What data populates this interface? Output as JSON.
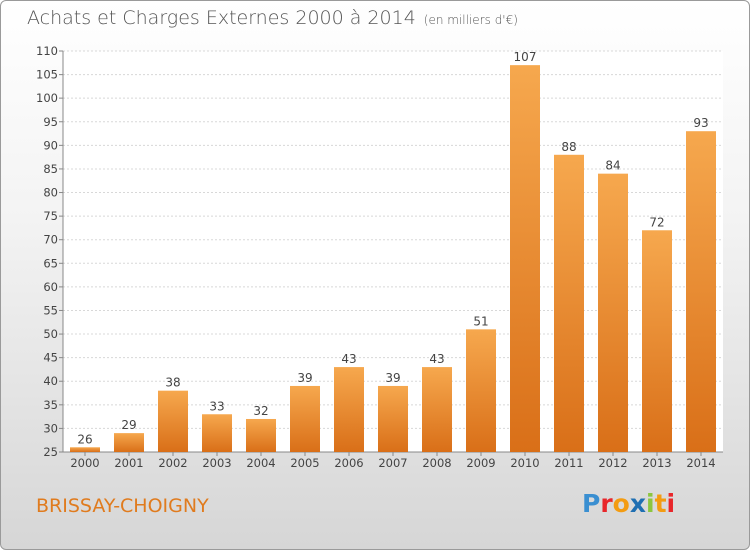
{
  "header": {
    "title": "Achats et Charges Externes 2000 à 2014",
    "subtitle": "(en milliers d'€)"
  },
  "commune": "BRISSAY-CHOIGNY",
  "logo": {
    "text": "Proxiti",
    "letters": [
      {
        "ch": "P",
        "color": "#3a8fd1"
      },
      {
        "ch": "r",
        "color": "#e8262a"
      },
      {
        "ch": "o",
        "color": "#f39c12"
      },
      {
        "ch": "x",
        "color": "#1f6fb2"
      },
      {
        "ch": "i",
        "color": "#8cc63f"
      },
      {
        "ch": "t",
        "color": "#f39c12"
      },
      {
        "ch": "i",
        "color": "#e8262a"
      }
    ]
  },
  "chart_data": {
    "type": "bar",
    "title": "Achats et Charges Externes 2000 à 2014",
    "subtitle": "(en milliers d'€)",
    "categories": [
      "2000",
      "2001",
      "2002",
      "2003",
      "2004",
      "2005",
      "2006",
      "2007",
      "2008",
      "2009",
      "2010",
      "2011",
      "2012",
      "2013",
      "2014"
    ],
    "values": [
      26,
      29,
      38,
      33,
      32,
      39,
      43,
      39,
      43,
      51,
      107,
      88,
      84,
      72,
      93
    ],
    "ylim": [
      25,
      110
    ],
    "yticks": [
      25,
      30,
      35,
      40,
      45,
      50,
      55,
      60,
      65,
      70,
      75,
      80,
      85,
      90,
      95,
      100,
      105,
      110
    ],
    "grid": true,
    "bar_color": "#f0a040",
    "xlabel": "",
    "ylabel": ""
  }
}
